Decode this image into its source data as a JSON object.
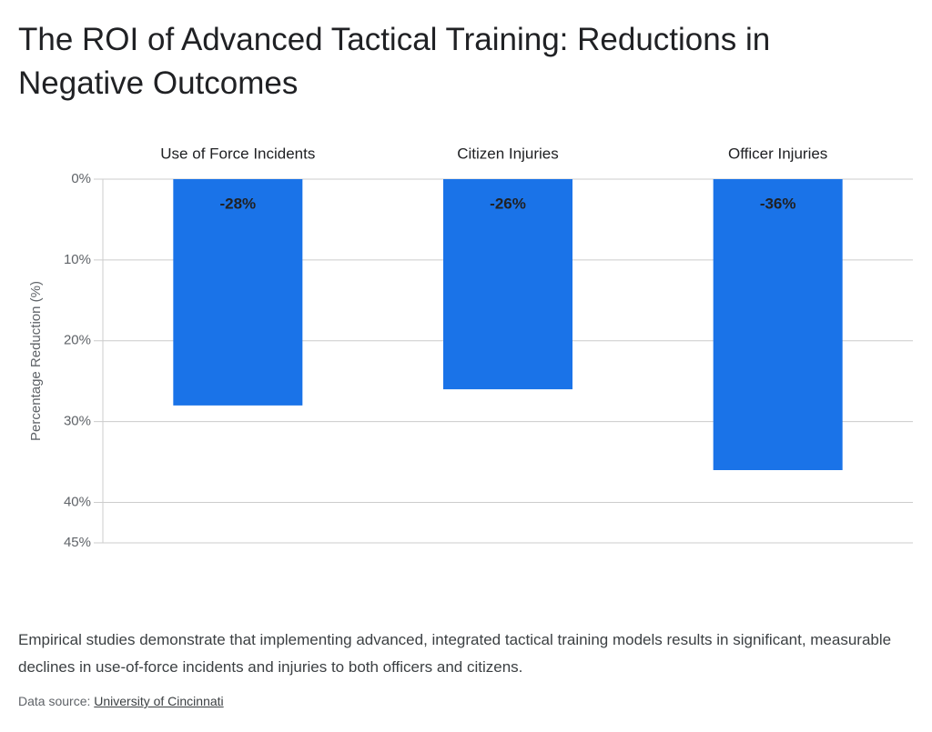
{
  "chart_data": {
    "type": "bar",
    "title": "The ROI of Advanced Tactical Training: Reductions in Negative Outcomes",
    "y_label": "Percentage Reduction (%)",
    "categories": [
      "Use of Force Incidents",
      "Citizen Injuries",
      "Officer Injuries"
    ],
    "values": [
      -28,
      -26,
      -36
    ],
    "value_labels": [
      "-28%",
      "-26%",
      "-36%"
    ],
    "color": "#1a73e8",
    "ylim": [
      0,
      -45
    ],
    "yticks": [
      {
        "value": 0,
        "label": "0%"
      },
      {
        "value": -10,
        "label": "10%"
      },
      {
        "value": -20,
        "label": "20%"
      },
      {
        "value": -30,
        "label": "30%"
      },
      {
        "value": -40,
        "label": "40%"
      },
      {
        "value": -45,
        "label": "45%"
      }
    ],
    "grid": true,
    "caption": "Empirical studies demonstrate that implementing advanced, integrated tactical training models results in significant, measurable declines in use-of-force incidents and injuries to both officers and citizens.",
    "source_label": "Data source:",
    "source": "University of Cincinnati"
  }
}
